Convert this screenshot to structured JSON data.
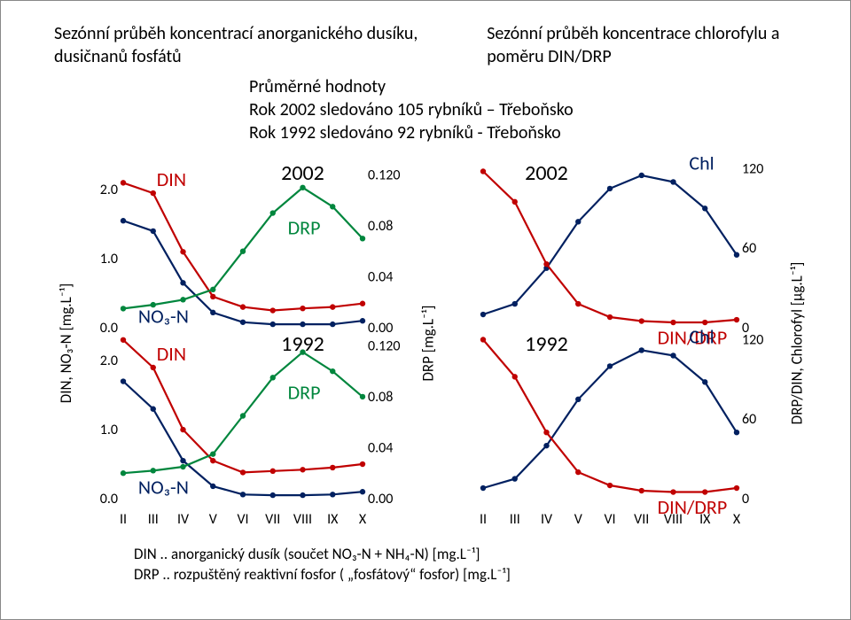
{
  "title_left": "Sezónní průběh koncentrací anorganického dusíku, dusičnanů fosfátů",
  "title_right": "Sezónní průběh koncentrace chlorofylu a poměru DIN/DRP",
  "mid_lines": [
    "Průměrné hodnoty",
    "Rok 2002 sledováno 105 rybníků – Třeboňsko",
    "Rok 1992 sledováno  92 rybníků - Třeboňsko"
  ],
  "left_axis_label": "DIN, NO₃-N  [mg.L⁻¹]",
  "mid_axis_label": "DRP [mg.L⁻¹]",
  "right_axis2_label": "DRP/DIN, Chlorofyl [µg.L⁻¹]",
  "x_ticks": [
    "II",
    "III",
    "IV",
    "V",
    "VI",
    "VII",
    "VIII",
    "IX",
    "X"
  ],
  "left_ticks": [
    "2.0",
    "1.0",
    "0.0",
    "2.0",
    "1.0",
    "0.0"
  ],
  "drp_ticks": [
    "0.120",
    "0.08",
    "0.04",
    "0.00",
    "0.120",
    "0.08",
    "0.04",
    "0.00"
  ],
  "right_ticks": [
    "120",
    "60",
    "0",
    "120",
    "60",
    "0"
  ],
  "year_top": "2002",
  "year_bot": "1992",
  "colors": {
    "DIN": "#c00000",
    "NO3": "#002060",
    "DRP": "#00863d",
    "Chl": "#002060",
    "DINDRP": "#c00000",
    "axis": "#000000"
  },
  "left_chart": {
    "x": [
      2,
      3,
      4,
      5,
      6,
      7,
      8,
      9,
      10
    ],
    "2002": {
      "DIN": [
        2.1,
        1.95,
        1.1,
        0.45,
        0.3,
        0.25,
        0.28,
        0.3,
        0.35
      ],
      "NO3": [
        1.55,
        1.4,
        0.65,
        0.22,
        0.08,
        0.05,
        0.05,
        0.05,
        0.1
      ],
      "DRP": [
        0.015,
        0.018,
        0.022,
        0.03,
        0.06,
        0.09,
        0.11,
        0.095,
        0.07
      ]
    },
    "1992": {
      "DIN": [
        2.3,
        1.9,
        1.0,
        0.55,
        0.38,
        0.4,
        0.42,
        0.45,
        0.5
      ],
      "NO3": [
        1.7,
        1.3,
        0.55,
        0.18,
        0.06,
        0.05,
        0.05,
        0.06,
        0.1
      ],
      "DRP": [
        0.02,
        0.022,
        0.025,
        0.035,
        0.065,
        0.095,
        0.115,
        0.1,
        0.08
      ]
    }
  },
  "right_chart": {
    "x": [
      2,
      3,
      4,
      5,
      6,
      7,
      8,
      9,
      10
    ],
    "2002": {
      "Chl": [
        10,
        18,
        45,
        80,
        105,
        115,
        110,
        90,
        55
      ],
      "DINDRP": [
        118,
        95,
        48,
        18,
        8,
        5,
        4,
        4,
        6
      ]
    },
    "1992": {
      "Chl": [
        8,
        15,
        40,
        75,
        100,
        112,
        108,
        88,
        50
      ],
      "DINDRP": [
        120,
        92,
        50,
        20,
        10,
        6,
        5,
        5,
        8
      ]
    }
  },
  "labels": {
    "DIN": "DIN",
    "NO3": "NO₃-N",
    "DRP": "DRP",
    "Chl": "Chl",
    "DINDRP": "DIN/DRP"
  },
  "legend_lines": [
    "DIN .. anorganický dusík (součet NO₃-N + NH₄-N) [mg.L⁻¹]",
    "DRP .. rozpuštěný reaktivní fosfor ( „fosfátový“ fosfor) [mg.L⁻¹]"
  ]
}
